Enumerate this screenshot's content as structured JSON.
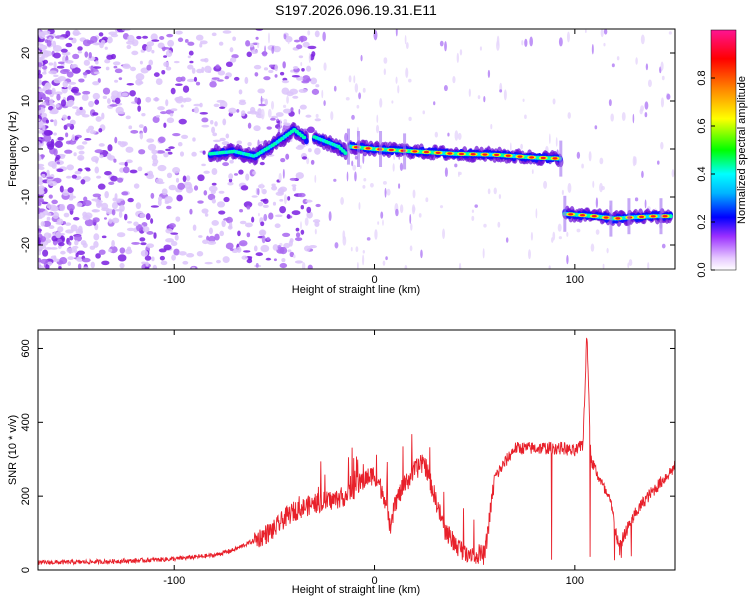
{
  "title": "S197.2026.096.19.31.E11",
  "chart_data": [
    {
      "type": "heatmap",
      "name": "spectrogram",
      "xlabel": "Height of straight line (km)",
      "ylabel": "Frequency (Hz)",
      "xlim": [
        -168,
        150
      ],
      "ylim": [
        -25,
        25
      ],
      "xticks": [
        -100,
        0,
        100
      ],
      "yticks": [
        20,
        10,
        0,
        -10,
        -20
      ],
      "colorbar": {
        "label": "Normalized spectral amplitude",
        "range": [
          0,
          1
        ],
        "ticks": [
          0.0,
          0.2,
          0.4,
          0.6,
          0.8
        ],
        "colormap": [
          "#ffffff",
          "#8a2be2",
          "#0000ff",
          "#00ffff",
          "#00ff00",
          "#ffff00",
          "#ff8000",
          "#ff0000",
          "#ff0080"
        ]
      },
      "features": [
        {
          "name": "ascending track",
          "x": [
            -82,
            -70,
            -60,
            -50,
            -40,
            -34
          ],
          "y": [
            -1,
            -0.5,
            -1.5,
            1,
            4,
            2
          ]
        },
        {
          "name": "descending track",
          "x": [
            -30,
            -24,
            -18,
            -14
          ],
          "y": [
            2.5,
            1.5,
            0.5,
            -1
          ]
        },
        {
          "name": "main band",
          "x": [
            -12,
            0,
            20,
            40,
            60,
            80,
            93
          ],
          "y": [
            0.5,
            0,
            -0.5,
            -1,
            -1.2,
            -1.8,
            -2
          ]
        },
        {
          "name": "lower band",
          "x": [
            95,
            110,
            120,
            130,
            140,
            148
          ],
          "y": [
            -13.5,
            -14,
            -14.5,
            -14.2,
            -14,
            -14
          ]
        }
      ]
    },
    {
      "type": "line",
      "name": "snr",
      "xlabel": "Height of straight line (km)",
      "ylabel": "SNR (10 * v/v)",
      "xlim": [
        -168,
        150
      ],
      "ylim": [
        0,
        650
      ],
      "xticks": [
        -100,
        0,
        100
      ],
      "yticks": [
        0,
        200,
        400,
        600
      ],
      "color": "#e8202a",
      "series": [
        {
          "name": "SNR",
          "x": [
            -168,
            -140,
            -120,
            -100,
            -80,
            -70,
            -60,
            -50,
            -45,
            -40,
            -35,
            -30,
            -25,
            -20,
            -15,
            -10,
            -5,
            0,
            5,
            8,
            10,
            15,
            20,
            25,
            30,
            35,
            40,
            45,
            50,
            55,
            60,
            70,
            80,
            90,
            94,
            100,
            104,
            106,
            108,
            112,
            118,
            122,
            126,
            130,
            135,
            140,
            145,
            150
          ],
          "y": [
            20,
            22,
            25,
            30,
            40,
            55,
            80,
            110,
            140,
            160,
            170,
            180,
            185,
            190,
            200,
            220,
            245,
            260,
            200,
            100,
            180,
            230,
            270,
            290,
            200,
            110,
            70,
            50,
            45,
            40,
            250,
            330,
            330,
            330,
            330,
            320,
            340,
            640,
            300,
            250,
            180,
            60,
            110,
            150,
            190,
            220,
            250,
            280
          ]
        }
      ]
    }
  ]
}
